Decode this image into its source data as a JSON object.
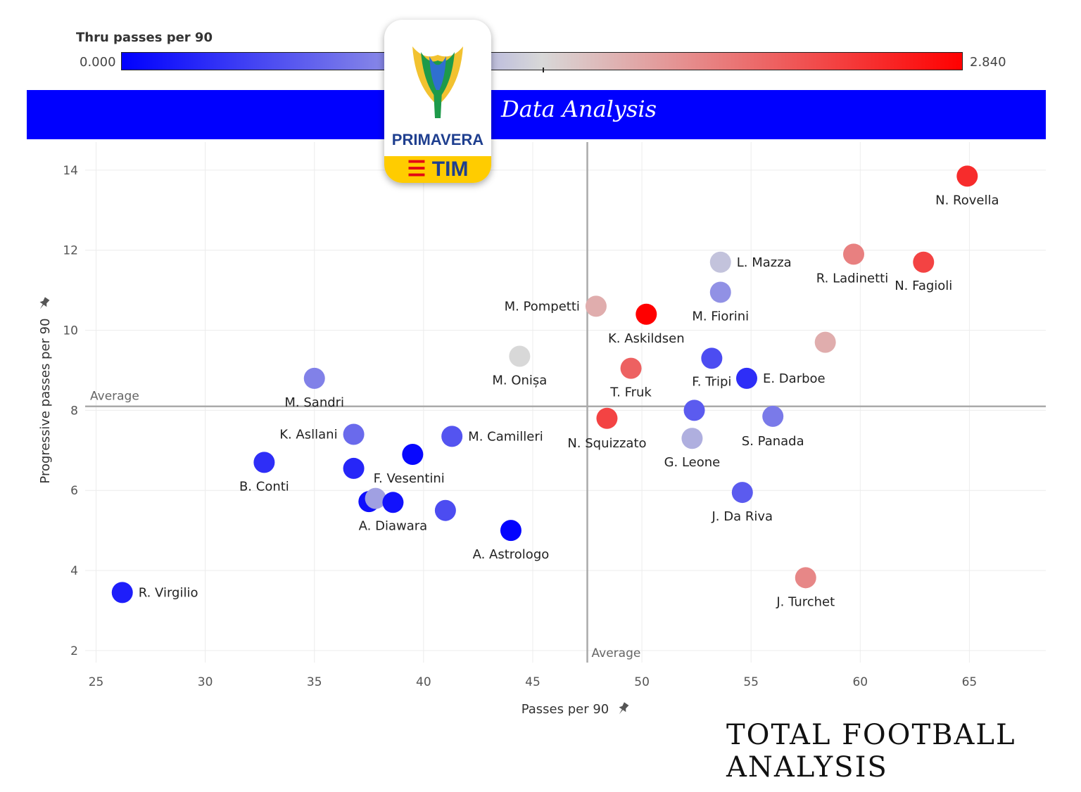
{
  "legend": {
    "title": "Thru passes per 90",
    "min_label": "0.000",
    "max_label": "2.840",
    "min": 0.0,
    "max": 2.84
  },
  "banner": {
    "title": "Data Analysis"
  },
  "logo": {
    "name": "PRIMAVERA",
    "sponsor": "TIM"
  },
  "watermark": "TOTAL FOOTBALL ANALYSIS",
  "colors": {
    "banner": "#0000ff",
    "low": "#0000ff",
    "mid": "#d8d8d8",
    "high": "#ff0000",
    "average_line": "#aaaaaa"
  },
  "chart_data": {
    "type": "scatter",
    "xlabel": "Passes per 90",
    "ylabel": "Progressive passes per 90",
    "xlim": [
      24.5,
      68.5
    ],
    "ylim": [
      1.7,
      14.7
    ],
    "xticks": [
      25,
      30,
      35,
      40,
      45,
      50,
      55,
      60,
      65
    ],
    "yticks": [
      2,
      4,
      6,
      8,
      10,
      12,
      14
    ],
    "grid": true,
    "average_x": 47.5,
    "average_y": 8.1,
    "average_label": "Average",
    "points": [
      {
        "label": "N. Rovella",
        "x": 64.9,
        "y": 13.85,
        "thru": 2.55
      },
      {
        "label": "R. Ladinetti",
        "x": 59.7,
        "y": 11.9,
        "thru": 2.0
      },
      {
        "label": "N. Fagioli",
        "x": 62.9,
        "y": 11.7,
        "thru": 2.4
      },
      {
        "label": "L. Mazza",
        "x": 53.6,
        "y": 11.7,
        "thru": 1.28
      },
      {
        "label": "M. Fiorini",
        "x": 53.6,
        "y": 10.95,
        "thru": 0.95
      },
      {
        "label": "M. Pompetti",
        "x": 47.9,
        "y": 10.6,
        "thru": 1.7
      },
      {
        "label": "K. Askildsen",
        "x": 50.2,
        "y": 10.4,
        "thru": 2.84
      },
      {
        "label": "",
        "x": 58.4,
        "y": 9.7,
        "thru": 1.7
      },
      {
        "label": "M. Onișa",
        "x": 44.4,
        "y": 9.35,
        "thru": 1.42
      },
      {
        "label": "T. Fruk",
        "x": 49.5,
        "y": 9.05,
        "thru": 2.2
      },
      {
        "label": "F. Tripi",
        "x": 53.2,
        "y": 9.3,
        "thru": 0.5
      },
      {
        "label": "E. Darboe",
        "x": 54.8,
        "y": 8.8,
        "thru": 0.3
      },
      {
        "label": "M. Sandri",
        "x": 35.0,
        "y": 8.8,
        "thru": 0.85
      },
      {
        "label": "",
        "x": 52.4,
        "y": 8.0,
        "thru": 0.6
      },
      {
        "label": "S. Panada",
        "x": 56.0,
        "y": 7.85,
        "thru": 0.8
      },
      {
        "label": "N. Squizzato",
        "x": 48.4,
        "y": 7.8,
        "thru": 2.4
      },
      {
        "label": "G. Leone",
        "x": 52.3,
        "y": 7.3,
        "thru": 1.15
      },
      {
        "label": "K. Asllani",
        "x": 36.8,
        "y": 7.4,
        "thru": 0.7
      },
      {
        "label": "M. Camilleri",
        "x": 41.3,
        "y": 7.35,
        "thru": 0.55
      },
      {
        "label": "",
        "x": 39.5,
        "y": 6.9,
        "thru": 0.05
      },
      {
        "label": "B. Conti",
        "x": 32.7,
        "y": 6.7,
        "thru": 0.3
      },
      {
        "label": "F. Vesentini",
        "x": 36.8,
        "y": 6.55,
        "thru": 0.25
      },
      {
        "label": "J. Da Riva",
        "x": 54.6,
        "y": 5.95,
        "thru": 0.6
      },
      {
        "label": "",
        "x": 37.5,
        "y": 5.72,
        "thru": 0.1
      },
      {
        "label": "",
        "x": 37.8,
        "y": 5.8,
        "thru": 1.05
      },
      {
        "label": "A. Diawara",
        "x": 38.6,
        "y": 5.7,
        "thru": 0.12
      },
      {
        "label": "",
        "x": 41.0,
        "y": 5.5,
        "thru": 0.5
      },
      {
        "label": "A. Astrologo",
        "x": 44.0,
        "y": 5.0,
        "thru": 0.02
      },
      {
        "label": "J. Turchet",
        "x": 57.5,
        "y": 3.82,
        "thru": 1.95
      },
      {
        "label": "R. Virgilio",
        "x": 26.2,
        "y": 3.45,
        "thru": 0.2
      }
    ]
  }
}
